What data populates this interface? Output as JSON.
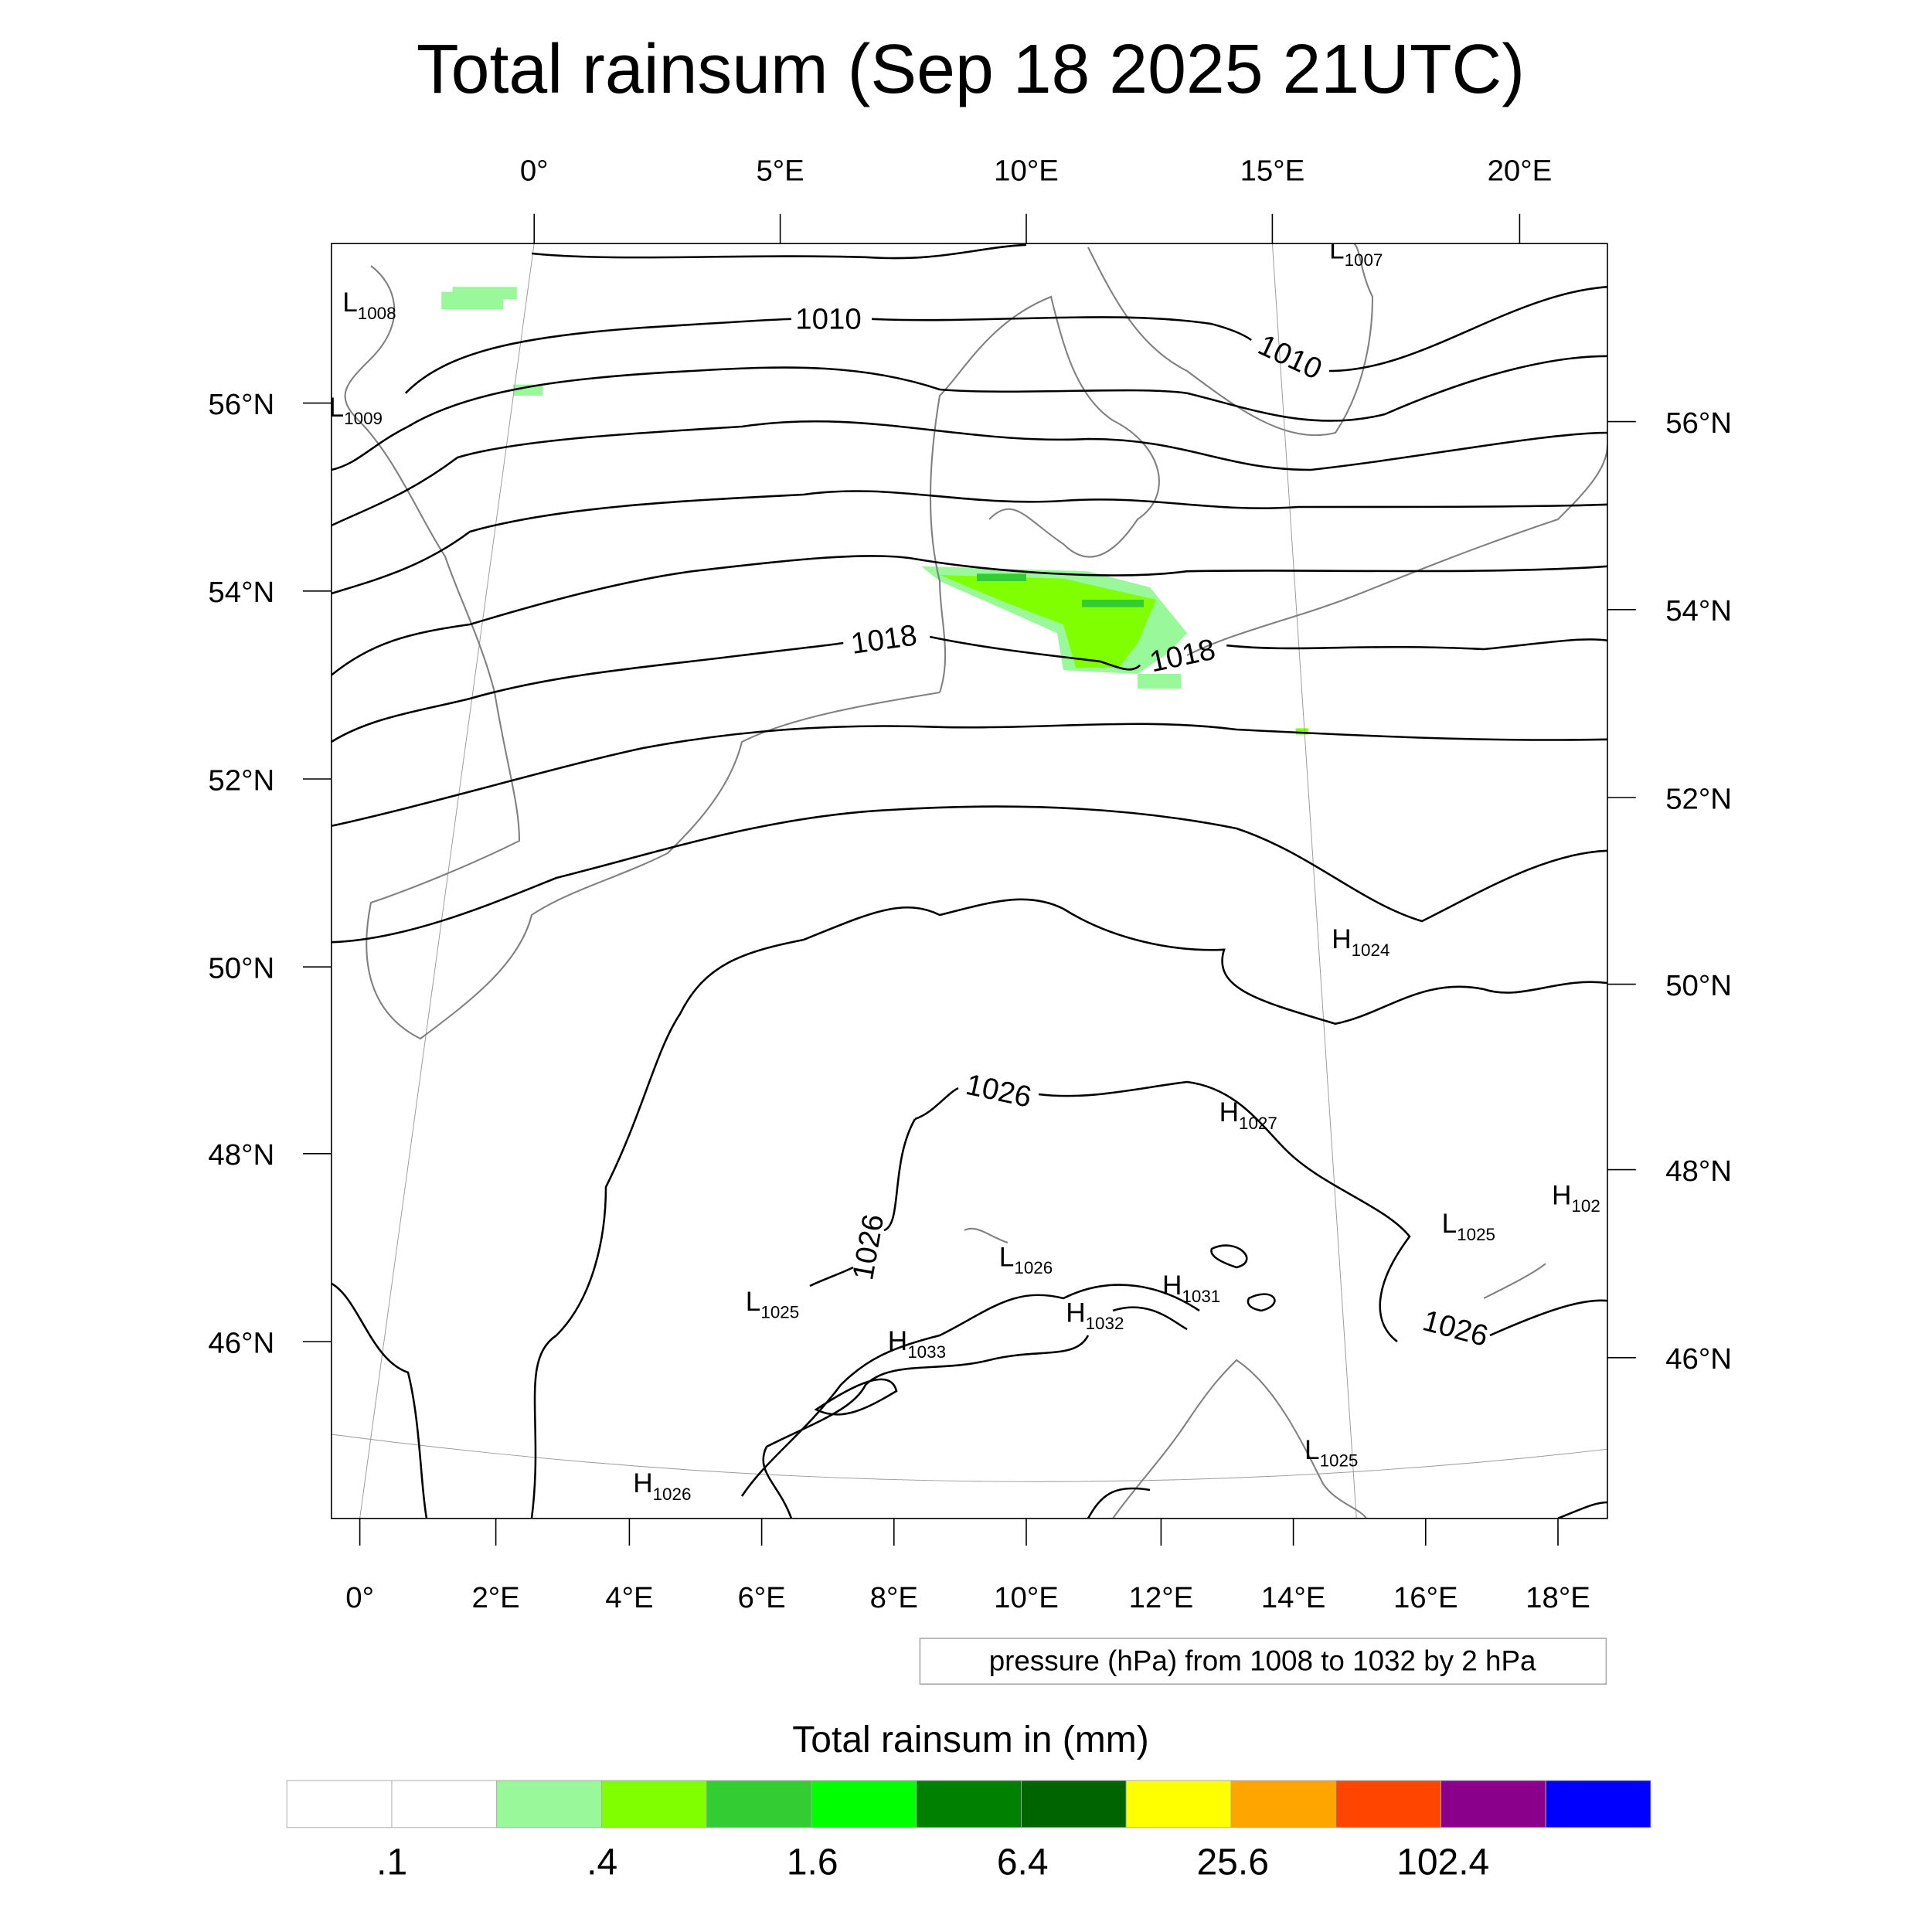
{
  "title": "Total rainsum (Sep 18 2025 21UTC)",
  "axes": {
    "top_lon": [
      "0°",
      "5°E",
      "10°E",
      "15°E",
      "20°E"
    ],
    "bottom_lon": [
      "0°",
      "2°E",
      "4°E",
      "6°E",
      "8°E",
      "10°E",
      "12°E",
      "14°E",
      "16°E",
      "18°E"
    ],
    "left_lat": [
      "56°N",
      "54°N",
      "52°N",
      "50°N",
      "48°N",
      "46°N"
    ],
    "right_lat": [
      "56°N",
      "54°N",
      "52°N",
      "50°N",
      "48°N",
      "46°N"
    ]
  },
  "pressure_centers": [
    {
      "letter": "L",
      "value": "1008"
    },
    {
      "letter": "L",
      "value": "1009"
    },
    {
      "letter": "L",
      "value": "1007"
    },
    {
      "letter": "H",
      "value": "1024"
    },
    {
      "letter": "H",
      "value": "1027"
    },
    {
      "letter": "L",
      "value": "1025"
    },
    {
      "letter": "H",
      "value": "102"
    },
    {
      "letter": "L",
      "value": "1026"
    },
    {
      "letter": "H",
      "value": "1031"
    },
    {
      "letter": "H",
      "value": "1032"
    },
    {
      "letter": "L",
      "value": "1025"
    },
    {
      "letter": "H",
      "value": "1033"
    },
    {
      "letter": "H",
      "value": "1026"
    },
    {
      "letter": "L",
      "value": "1025"
    }
  ],
  "contour_labels": [
    "1010",
    "1010",
    "1018",
    "1018",
    "1026",
    "1026",
    "1026"
  ],
  "contour_info": "pressure (hPa) from 1008 to 1032 by 2 hPa",
  "colorbar": {
    "title": "Total rainsum in (mm)",
    "colors": [
      "#ffffff",
      "#ffffff",
      "#99f899",
      "#80ff00",
      "#33cc33",
      "#00ff00",
      "#008000",
      "#006400",
      "#ffff00",
      "#ffa500",
      "#ff4500",
      "#8b008b",
      "#0000ff"
    ],
    "labels": [
      ".1",
      ".4",
      "1.6",
      "6.4",
      "25.6",
      "102.4"
    ]
  }
}
